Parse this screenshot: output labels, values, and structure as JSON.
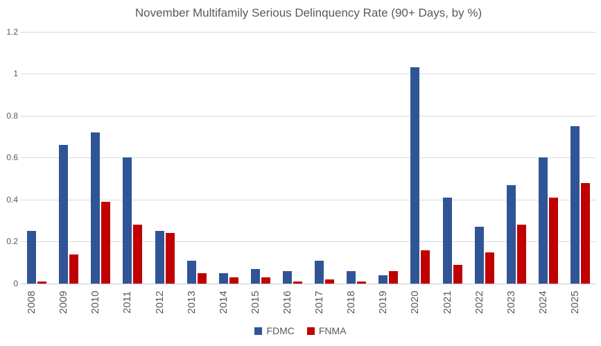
{
  "chart_data": {
    "type": "bar",
    "title": "November Multifamily Serious Delinquency Rate (90+ Days, by %)",
    "categories": [
      "2008",
      "2009",
      "2010",
      "2011",
      "2012",
      "2013",
      "2014",
      "2015",
      "2016",
      "2017",
      "2018",
      "2019",
      "2020",
      "2021",
      "2022",
      "2023",
      "2024",
      "2025"
    ],
    "series": [
      {
        "name": "FDMC",
        "color": "#2F5597",
        "values": [
          0.25,
          0.66,
          0.72,
          0.6,
          0.25,
          0.11,
          0.05,
          0.07,
          0.06,
          0.11,
          0.06,
          0.04,
          1.03,
          0.41,
          0.27,
          0.47,
          0.6,
          0.75
        ]
      },
      {
        "name": "FNMA",
        "color": "#C00000",
        "values": [
          0.01,
          0.14,
          0.39,
          0.28,
          0.24,
          0.05,
          0.03,
          0.03,
          0.01,
          0.02,
          0.01,
          0.06,
          0.16,
          0.09,
          0.15,
          0.28,
          0.41,
          0.48
        ]
      }
    ],
    "xlabel": "",
    "ylabel": "",
    "ylim": [
      0,
      1.2
    ],
    "ytick_values": [
      0,
      0.2,
      0.4,
      0.6,
      0.8,
      1,
      1.2
    ],
    "ytick_labels": [
      "0",
      "0.2",
      "0.4",
      "0.6",
      "0.8",
      "1",
      "1.2"
    ],
    "grid": true,
    "legend_position": "bottom",
    "colors": {
      "title_text": "#595959",
      "axis_text": "#595959",
      "gridline": "#D9D9D9"
    }
  }
}
